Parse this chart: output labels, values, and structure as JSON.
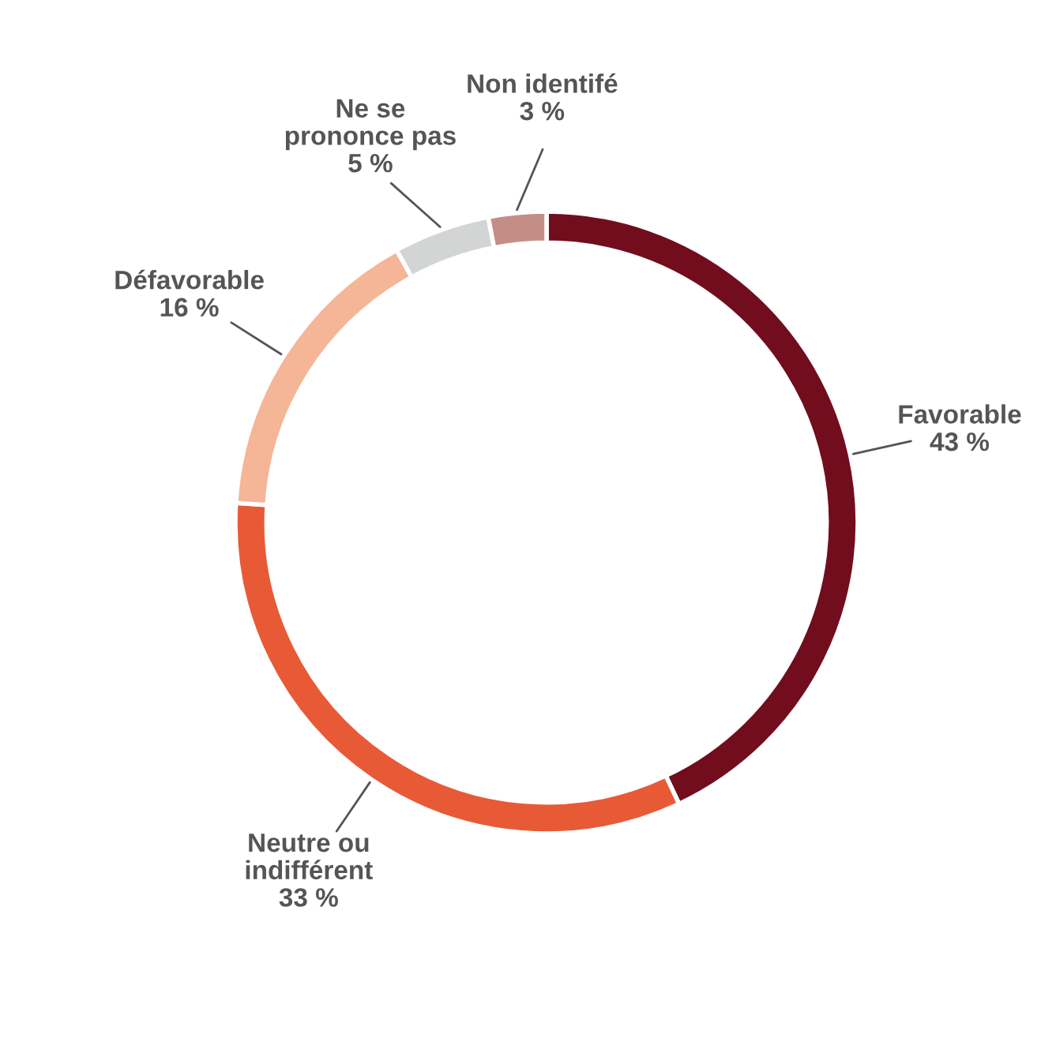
{
  "chart_data": {
    "type": "donut",
    "categories": [
      "Favorable",
      "Neutre ou\nindifférent",
      "Défavorable",
      "Ne se\nprononce pas",
      "Non identifé"
    ],
    "values": [
      43,
      33,
      16,
      5,
      3
    ],
    "value_labels": [
      "43 %",
      "33 %",
      "16 %",
      "5 %",
      "3 %"
    ],
    "colors": [
      "#720d1d",
      "#e85a36",
      "#f5b597",
      "#d3d5d4",
      "#c48e87"
    ],
    "legend": false
  }
}
